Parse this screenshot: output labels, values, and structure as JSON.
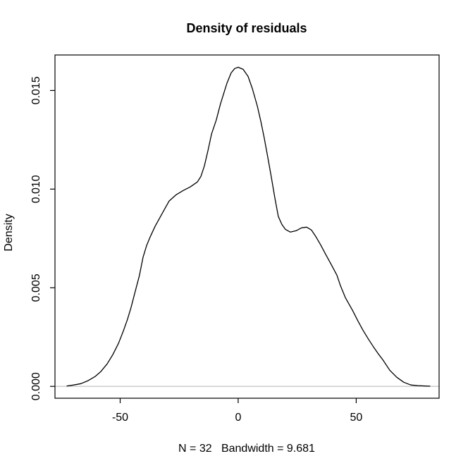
{
  "figure": {
    "title": "Density of residuals",
    "xlabel": "N = 32   Bandwidth = 9.681",
    "ylabel": "Density"
  },
  "chart_data": {
    "type": "line",
    "title": "Density of residuals",
    "subtitle": "",
    "xlabel": "N = 32   Bandwidth = 9.681",
    "ylabel": "Density",
    "n": 32,
    "bandwidth": 9.681,
    "grid": false,
    "legend": null,
    "xlim": [
      -77.6,
      85.1
    ],
    "ylim": [
      -0.0006,
      0.0168
    ],
    "x_ticks": [
      {
        "value": -50,
        "label": "-50"
      },
      {
        "value": 0,
        "label": "0"
      },
      {
        "value": 50,
        "label": "50"
      }
    ],
    "y_ticks": [
      {
        "value": 0.0,
        "label": "0.000"
      },
      {
        "value": 0.005,
        "label": "0.005"
      },
      {
        "value": 0.01,
        "label": "0.010"
      },
      {
        "value": 0.015,
        "label": "0.015"
      }
    ],
    "colors": {
      "curve": "#000000",
      "frame": "#000000",
      "zero_line": "#c8c8c8",
      "text": "#000000",
      "background": "#ffffff"
    },
    "zero_reference_line": {
      "y": 0.0
    },
    "series": [
      {
        "name": "density",
        "type": "line",
        "color": "#000000",
        "points": [
          [
            -72.5,
            2e-05
          ],
          [
            -69.6,
            7e-05
          ],
          [
            -66.6,
            0.00014
          ],
          [
            -63.6,
            0.00029
          ],
          [
            -60.6,
            0.0005
          ],
          [
            -58.2,
            0.00075
          ],
          [
            -55.5,
            0.00114
          ],
          [
            -53.1,
            0.00161
          ],
          [
            -50.7,
            0.00218
          ],
          [
            -48.7,
            0.00279
          ],
          [
            -46.9,
            0.00339
          ],
          [
            -45.4,
            0.004
          ],
          [
            -43.6,
            0.00482
          ],
          [
            -41.8,
            0.00564
          ],
          [
            -40.3,
            0.00654
          ],
          [
            -38.8,
            0.00714
          ],
          [
            -37.3,
            0.00757
          ],
          [
            -35.2,
            0.00811
          ],
          [
            -33.1,
            0.00857
          ],
          [
            -31.3,
            0.00896
          ],
          [
            -29.3,
            0.00939
          ],
          [
            -26.3,
            0.00971
          ],
          [
            -23.3,
            0.00993
          ],
          [
            -20.3,
            0.01011
          ],
          [
            -17.3,
            0.01036
          ],
          [
            -15.8,
            0.01064
          ],
          [
            -14.3,
            0.01118
          ],
          [
            -12.8,
            0.01196
          ],
          [
            -11.3,
            0.01279
          ],
          [
            -9.3,
            0.0135
          ],
          [
            -7.5,
            0.01432
          ],
          [
            -4.8,
            0.01536
          ],
          [
            -3.0,
            0.01589
          ],
          [
            -1.5,
            0.01611
          ],
          [
            0.0,
            0.01618
          ],
          [
            2.1,
            0.01607
          ],
          [
            4.2,
            0.01571
          ],
          [
            6.0,
            0.0151
          ],
          [
            8.1,
            0.01421
          ],
          [
            9.6,
            0.01343
          ],
          [
            11.0,
            0.01261
          ],
          [
            12.5,
            0.01164
          ],
          [
            14.0,
            0.01064
          ],
          [
            15.5,
            0.00957
          ],
          [
            17.0,
            0.00861
          ],
          [
            18.5,
            0.00821
          ],
          [
            20.0,
            0.00796
          ],
          [
            22.1,
            0.00782
          ],
          [
            24.5,
            0.00789
          ],
          [
            26.9,
            0.00804
          ],
          [
            29.0,
            0.00807
          ],
          [
            31.0,
            0.00793
          ],
          [
            32.8,
            0.00761
          ],
          [
            34.9,
            0.00718
          ],
          [
            37.3,
            0.00664
          ],
          [
            39.4,
            0.00618
          ],
          [
            41.8,
            0.00564
          ],
          [
            43.3,
            0.00511
          ],
          [
            45.4,
            0.0045
          ],
          [
            48.4,
            0.00386
          ],
          [
            50.7,
            0.00332
          ],
          [
            52.8,
            0.00286
          ],
          [
            55.2,
            0.00239
          ],
          [
            57.3,
            0.002
          ],
          [
            59.4,
            0.00164
          ],
          [
            61.2,
            0.00136
          ],
          [
            64.2,
            0.00082
          ],
          [
            67.2,
            0.00046
          ],
          [
            70.1,
            0.00021
          ],
          [
            73.1,
            7e-05
          ],
          [
            76.1,
            4e-05
          ],
          [
            79.1,
            2e-05
          ],
          [
            81.2,
            1e-05
          ]
        ]
      }
    ]
  }
}
